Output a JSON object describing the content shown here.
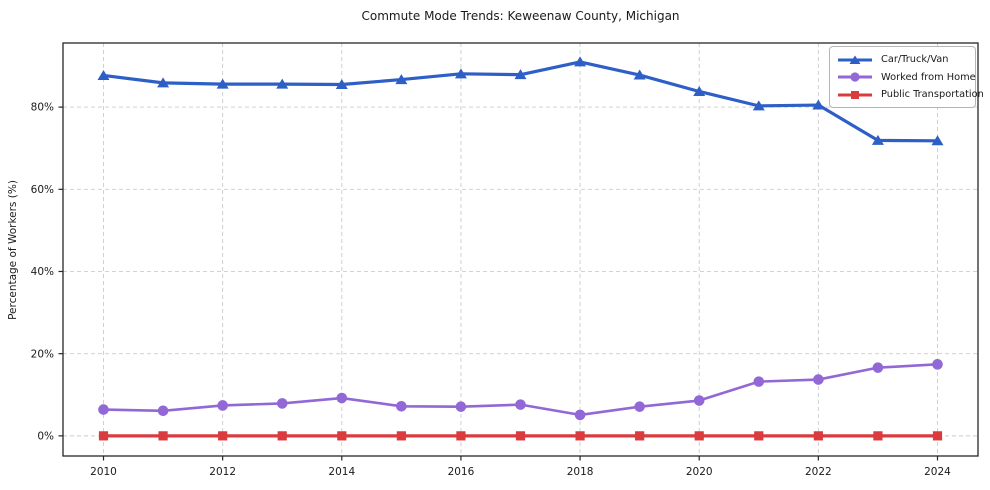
{
  "chart_data": {
    "type": "line",
    "title": "Commute Mode Trends: Keweenaw County, Michigan",
    "xlabel": "",
    "ylabel": "Percentage of Workers (%)",
    "x": [
      2010,
      2011,
      2012,
      2013,
      2014,
      2015,
      2016,
      2017,
      2018,
      2019,
      2020,
      2021,
      2022,
      2023,
      2024
    ],
    "series": [
      {
        "name": "Car/Truck/Van",
        "color": "#2e5fc6",
        "marker": "triangle",
        "values": [
          87.7,
          85.9,
          85.6,
          85.6,
          85.5,
          86.7,
          88.1,
          87.9,
          91.0,
          87.8,
          83.8,
          80.3,
          80.5,
          71.9,
          71.8
        ]
      },
      {
        "name": "Worked from Home",
        "color": "#9168d6",
        "marker": "circle",
        "values": [
          6.4,
          6.1,
          7.4,
          7.9,
          9.2,
          7.2,
          7.1,
          7.6,
          5.1,
          7.1,
          8.6,
          13.2,
          13.7,
          16.6,
          17.4
        ]
      },
      {
        "name": "Public Transportation",
        "color": "#d93b3e",
        "marker": "square",
        "values": [
          0.0,
          0.0,
          0.0,
          0.0,
          0.0,
          0.0,
          0.0,
          0.0,
          0.0,
          0.0,
          0.0,
          0.0,
          0.0,
          0.0,
          0.0
        ]
      }
    ],
    "xlim": [
      2009.32,
      2024.68
    ],
    "ylim": [
      -4.9,
      95.6
    ],
    "xticks": {
      "values": [
        2010,
        2012,
        2014,
        2016,
        2018,
        2020,
        2022,
        2024
      ],
      "labels": [
        "2010",
        "2012",
        "2014",
        "2016",
        "2018",
        "2020",
        "2022",
        "2024"
      ]
    },
    "yticks": {
      "values": [
        0,
        20,
        40,
        60,
        80
      ],
      "labels": [
        "0%",
        "20%",
        "40%",
        "60%",
        "80%"
      ]
    },
    "grid": true,
    "grid_style": "dashed",
    "legend_position": "upper right",
    "axis_color": "#262626",
    "grid_color": "#cbcbcb",
    "tick_label_color": "#1a1a1a"
  }
}
